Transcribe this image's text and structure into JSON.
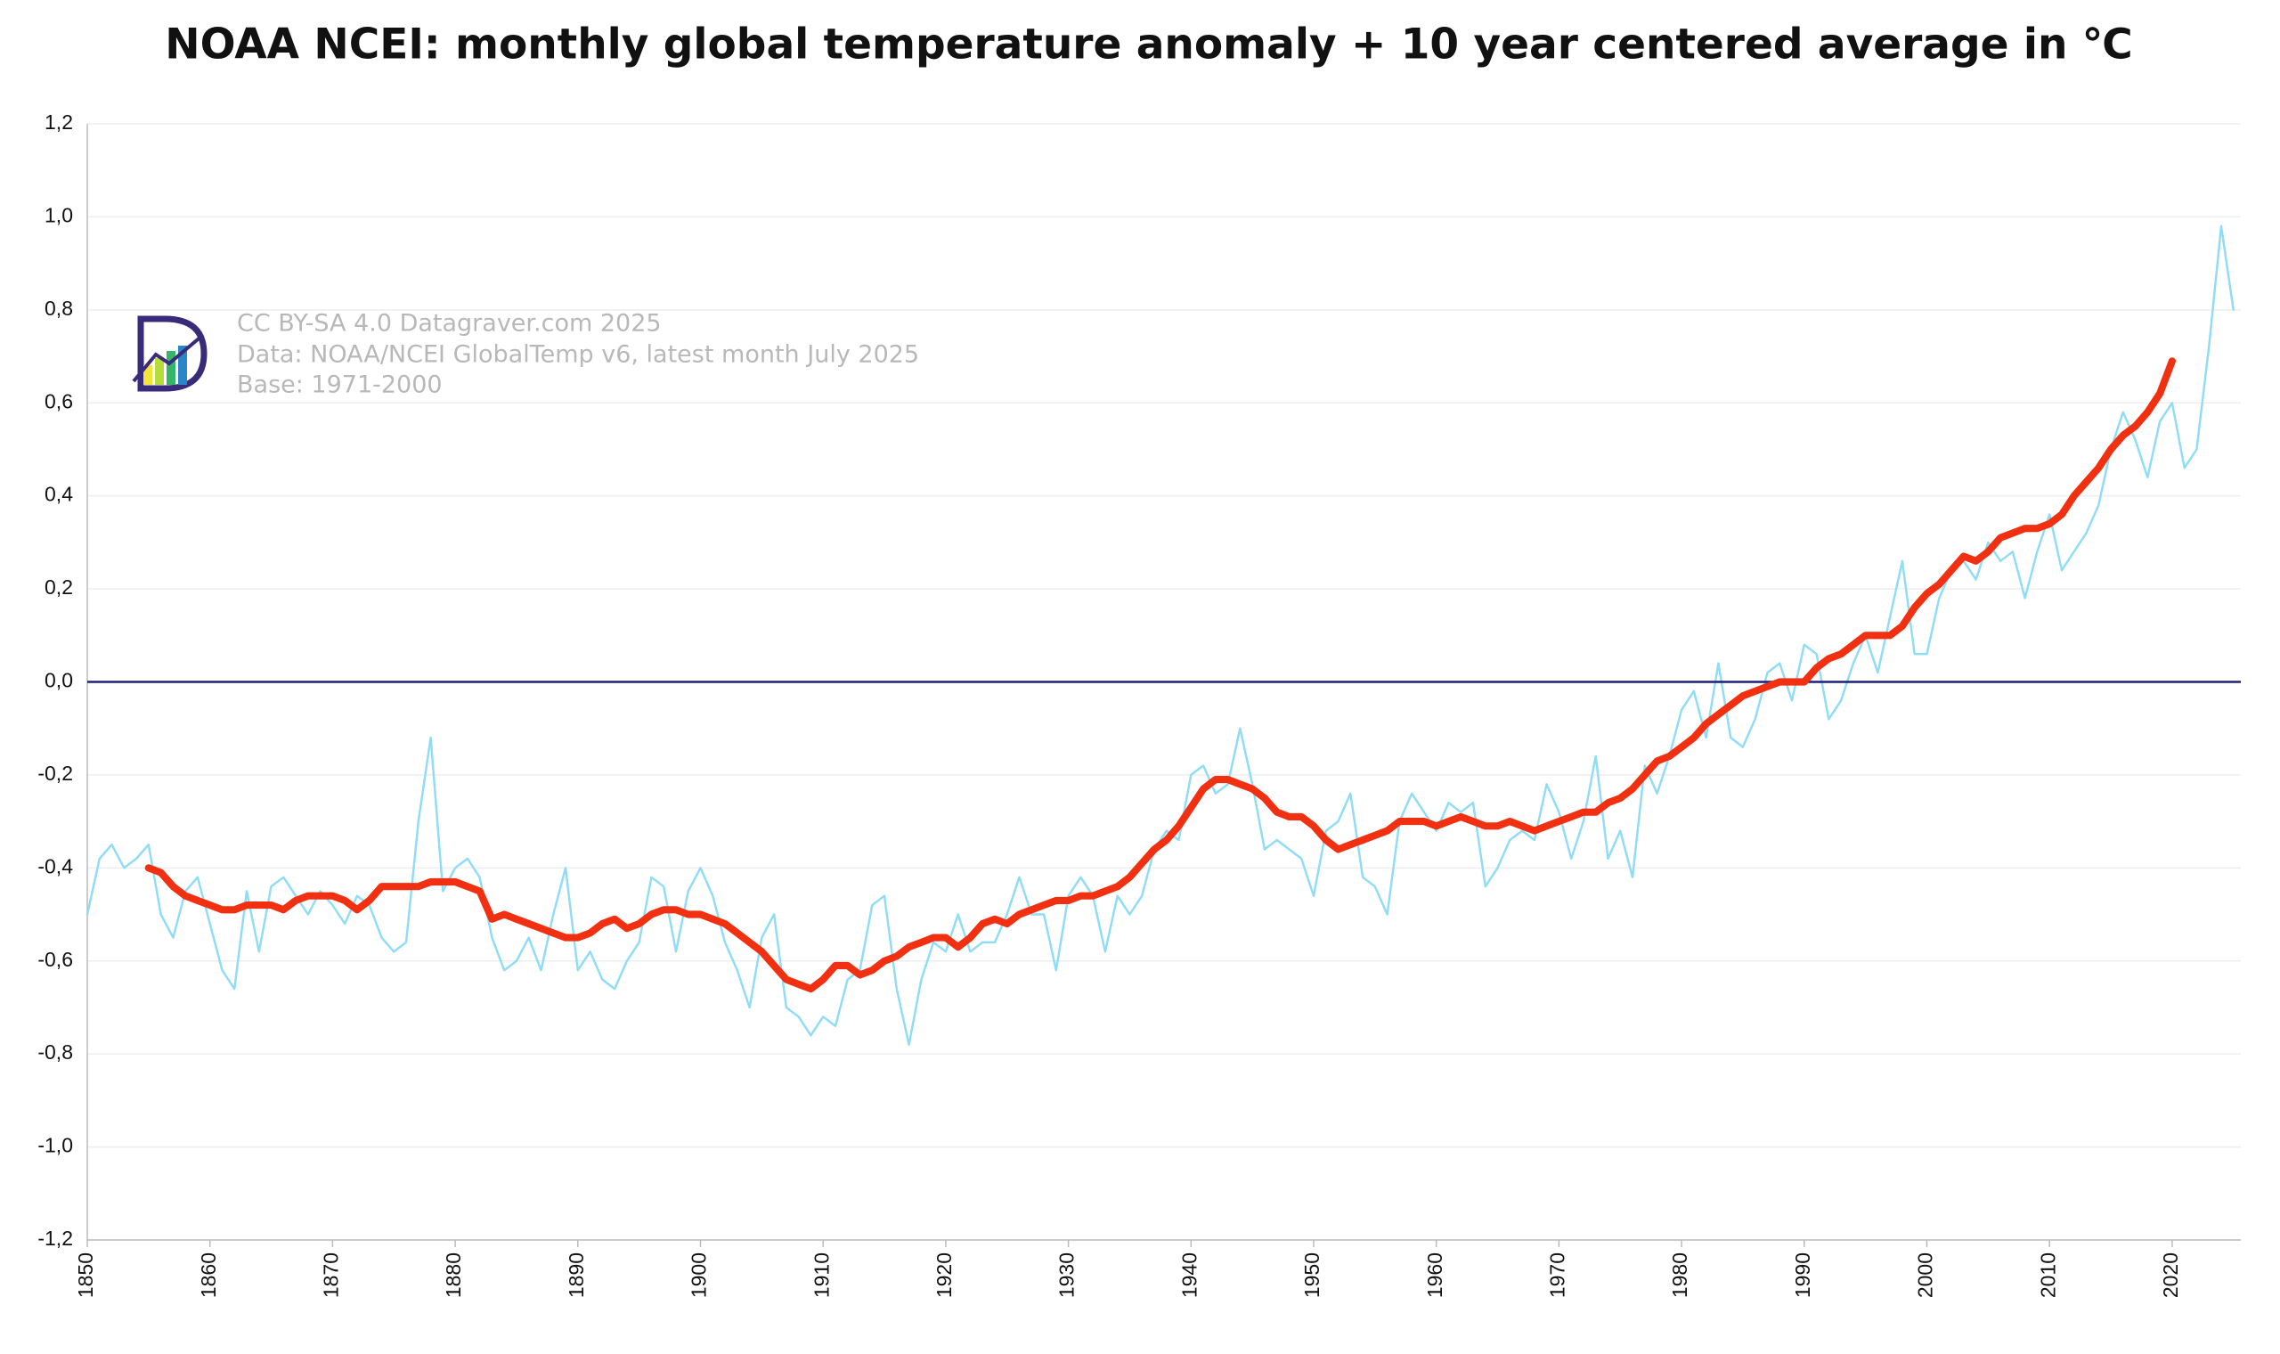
{
  "chart_data": {
    "type": "line",
    "title": "NOAA NCEI: monthly global temperature anomaly + 10 year centered average in ℃",
    "annotations": [
      "CC BY-SA 4.0 Datagraver.com 2025",
      "Data: NOAA/NCEI  GlobalTemp v6, latest month July 2025",
      "Base: 1971-2000"
    ],
    "x": [
      1850,
      1851,
      1852,
      1853,
      1854,
      1855,
      1856,
      1857,
      1858,
      1859,
      1860,
      1861,
      1862,
      1863,
      1864,
      1865,
      1866,
      1867,
      1868,
      1869,
      1870,
      1871,
      1872,
      1873,
      1874,
      1875,
      1876,
      1877,
      1878,
      1879,
      1880,
      1881,
      1882,
      1883,
      1884,
      1885,
      1886,
      1887,
      1888,
      1889,
      1890,
      1891,
      1892,
      1893,
      1894,
      1895,
      1896,
      1897,
      1898,
      1899,
      1900,
      1901,
      1902,
      1903,
      1904,
      1905,
      1906,
      1907,
      1908,
      1909,
      1910,
      1911,
      1912,
      1913,
      1914,
      1915,
      1916,
      1917,
      1918,
      1919,
      1920,
      1921,
      1922,
      1923,
      1924,
      1925,
      1926,
      1927,
      1928,
      1929,
      1930,
      1931,
      1932,
      1933,
      1934,
      1935,
      1936,
      1937,
      1938,
      1939,
      1940,
      1941,
      1942,
      1943,
      1944,
      1945,
      1946,
      1947,
      1948,
      1949,
      1950,
      1951,
      1952,
      1953,
      1954,
      1955,
      1956,
      1957,
      1958,
      1959,
      1960,
      1961,
      1962,
      1963,
      1964,
      1965,
      1966,
      1967,
      1968,
      1969,
      1970,
      1971,
      1972,
      1973,
      1974,
      1975,
      1976,
      1977,
      1978,
      1979,
      1980,
      1981,
      1982,
      1983,
      1984,
      1985,
      1986,
      1987,
      1988,
      1989,
      1990,
      1991,
      1992,
      1993,
      1994,
      1995,
      1996,
      1997,
      1998,
      1999,
      2000,
      2001,
      2002,
      2003,
      2004,
      2005,
      2006,
      2007,
      2008,
      2009,
      2010,
      2011,
      2012,
      2013,
      2014,
      2015,
      2016,
      2017,
      2018,
      2019,
      2020,
      2021,
      2022,
      2023,
      2024,
      2025
    ],
    "series": [
      {
        "color": "#8fdcf7",
        "width": 1.5,
        "values": [
          -0.5,
          -0.38,
          -0.35,
          -0.4,
          -0.38,
          -0.35,
          -0.5,
          -0.55,
          -0.45,
          -0.42,
          -0.52,
          -0.62,
          -0.66,
          -0.45,
          -0.58,
          -0.44,
          -0.42,
          -0.46,
          -0.5,
          -0.45,
          -0.48,
          -0.52,
          -0.46,
          -0.48,
          -0.55,
          -0.58,
          -0.56,
          -0.3,
          -0.12,
          -0.45,
          -0.4,
          -0.38,
          -0.42,
          -0.55,
          -0.62,
          -0.6,
          -0.55,
          -0.62,
          -0.5,
          -0.4,
          -0.62,
          -0.58,
          -0.64,
          -0.66,
          -0.6,
          -0.56,
          -0.42,
          -0.44,
          -0.58,
          -0.45,
          -0.4,
          -0.46,
          -0.56,
          -0.62,
          -0.7,
          -0.55,
          -0.5,
          -0.7,
          -0.72,
          -0.76,
          -0.72,
          -0.74,
          -0.64,
          -0.62,
          -0.48,
          -0.46,
          -0.66,
          -0.78,
          -0.64,
          -0.56,
          -0.58,
          -0.5,
          -0.58,
          -0.56,
          -0.56,
          -0.5,
          -0.42,
          -0.5,
          -0.5,
          -0.62,
          -0.46,
          -0.42,
          -0.46,
          -0.58,
          -0.46,
          -0.5,
          -0.46,
          -0.36,
          -0.32,
          -0.34,
          -0.2,
          -0.18,
          -0.24,
          -0.22,
          -0.1,
          -0.22,
          -0.36,
          -0.34,
          -0.36,
          -0.38,
          -0.46,
          -0.32,
          -0.3,
          -0.24,
          -0.42,
          -0.44,
          -0.5,
          -0.3,
          -0.24,
          -0.28,
          -0.32,
          -0.26,
          -0.28,
          -0.26,
          -0.44,
          -0.4,
          -0.34,
          -0.32,
          -0.34,
          -0.22,
          -0.28,
          -0.38,
          -0.3,
          -0.16,
          -0.38,
          -0.32,
          -0.42,
          -0.18,
          -0.24,
          -0.16,
          -0.06,
          -0.02,
          -0.12,
          0.04,
          -0.12,
          -0.14,
          -0.08,
          0.02,
          0.04,
          -0.04,
          0.08,
          0.06,
          -0.08,
          -0.04,
          0.04,
          0.1,
          0.02,
          0.14,
          0.26,
          0.06,
          0.06,
          0.18,
          0.24,
          0.26,
          0.22,
          0.3,
          0.26,
          0.28,
          0.18,
          0.28,
          0.36,
          0.24,
          0.28,
          0.32,
          0.38,
          0.5,
          0.58,
          0.52,
          0.44,
          0.56,
          0.6,
          0.46,
          0.5,
          0.72,
          0.98,
          0.8
        ]
      },
      {
        "color": "#f03010",
        "width": 5,
        "values": [
          null,
          null,
          null,
          null,
          null,
          -0.4,
          -0.41,
          -0.44,
          -0.46,
          -0.47,
          -0.48,
          -0.49,
          -0.49,
          -0.48,
          -0.48,
          -0.48,
          -0.49,
          -0.47,
          -0.46,
          -0.46,
          -0.46,
          -0.47,
          -0.49,
          -0.47,
          -0.44,
          -0.44,
          -0.44,
          -0.44,
          -0.43,
          -0.43,
          -0.43,
          -0.44,
          -0.45,
          -0.51,
          -0.5,
          -0.51,
          -0.52,
          -0.53,
          -0.54,
          -0.55,
          -0.55,
          -0.54,
          -0.52,
          -0.51,
          -0.53,
          -0.52,
          -0.5,
          -0.49,
          -0.49,
          -0.5,
          -0.5,
          -0.51,
          -0.52,
          -0.54,
          -0.56,
          -0.58,
          -0.61,
          -0.64,
          -0.65,
          -0.66,
          -0.64,
          -0.61,
          -0.61,
          -0.63,
          -0.62,
          -0.6,
          -0.59,
          -0.57,
          -0.56,
          -0.55,
          -0.55,
          -0.57,
          -0.55,
          -0.52,
          -0.51,
          -0.52,
          -0.5,
          -0.49,
          -0.48,
          -0.47,
          -0.47,
          -0.46,
          -0.46,
          -0.45,
          -0.44,
          -0.42,
          -0.39,
          -0.36,
          -0.34,
          -0.31,
          -0.27,
          -0.23,
          -0.21,
          -0.21,
          -0.22,
          -0.23,
          -0.25,
          -0.28,
          -0.29,
          -0.29,
          -0.31,
          -0.34,
          -0.36,
          -0.35,
          -0.34,
          -0.33,
          -0.32,
          -0.3,
          -0.3,
          -0.3,
          -0.31,
          -0.3,
          -0.29,
          -0.3,
          -0.31,
          -0.31,
          -0.3,
          -0.31,
          -0.32,
          -0.31,
          -0.3,
          -0.29,
          -0.28,
          -0.28,
          -0.26,
          -0.25,
          -0.23,
          -0.2,
          -0.17,
          -0.16,
          -0.14,
          -0.12,
          -0.09,
          -0.07,
          -0.05,
          -0.03,
          -0.02,
          -0.01,
          0.0,
          0.0,
          0.0,
          0.03,
          0.05,
          0.06,
          0.08,
          0.1,
          0.1,
          0.1,
          0.12,
          0.16,
          0.19,
          0.21,
          0.24,
          0.27,
          0.26,
          0.28,
          0.31,
          0.32,
          0.33,
          0.33,
          0.34,
          0.36,
          0.4,
          0.43,
          0.46,
          0.5,
          0.53,
          0.55,
          0.58,
          0.62,
          0.69,
          null,
          null,
          null,
          null,
          null
        ]
      }
    ],
    "xlim": [
      1850,
      2025.6
    ],
    "xticks": [
      1850,
      1860,
      1870,
      1880,
      1890,
      1900,
      1910,
      1920,
      1930,
      1940,
      1950,
      1960,
      1970,
      1980,
      1990,
      2000,
      2010,
      2020
    ],
    "ylim": [
      -1.2,
      1.2
    ],
    "yticks": [
      {
        "value": -1.2,
        "label": "-1,2"
      },
      {
        "value": -1.0,
        "label": "-1,0"
      },
      {
        "value": -0.8,
        "label": "-0,8"
      },
      {
        "value": -0.6,
        "label": "-0,6"
      },
      {
        "value": -0.4,
        "label": "-0,4"
      },
      {
        "value": -0.2,
        "label": "-0,2"
      },
      {
        "value": 0,
        "label": "0,0"
      },
      {
        "value": 0.2,
        "label": "0,2"
      },
      {
        "value": 0.4,
        "label": "0,4"
      },
      {
        "value": 0.6,
        "label": "0,6"
      },
      {
        "value": 0.8,
        "label": "0,8"
      },
      {
        "value": 1.0,
        "label": "1,0"
      },
      {
        "value": 1.2,
        "label": "1,2"
      }
    ],
    "grid": true,
    "zero_line_color": "#1f1f7a"
  }
}
